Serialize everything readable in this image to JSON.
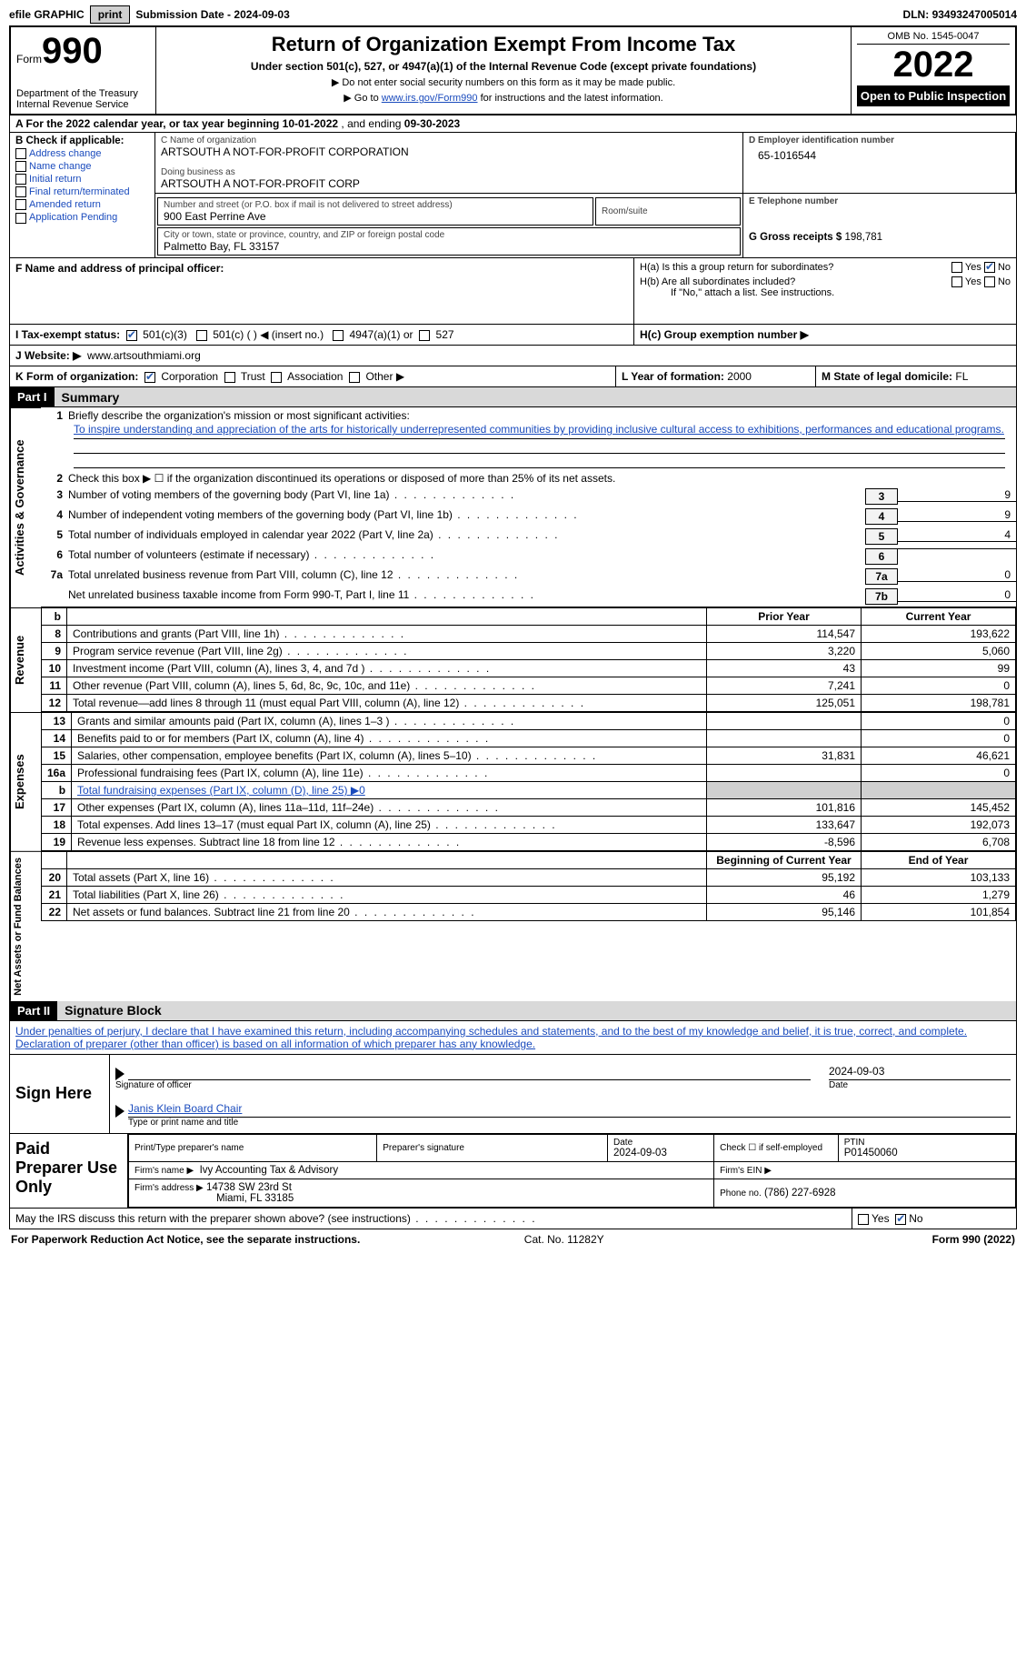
{
  "topbar": {
    "efile": "efile GRAPHIC",
    "print_btn": "print",
    "submission_label": "Submission Date -",
    "submission_date": "2024-09-03",
    "dln_label": "DLN:",
    "dln": "93493247005014"
  },
  "header": {
    "form_label": "Form",
    "form_no": "990",
    "dept": "Department of the Treasury\nInternal Revenue Service",
    "title": "Return of Organization Exempt From Income Tax",
    "subtitle": "Under section 501(c), 527, or 4947(a)(1) of the Internal Revenue Code (except private foundations)",
    "note1": "▶ Do not enter social security numbers on this form as it may be made public.",
    "note2_pre": "▶ Go to ",
    "note2_link": "www.irs.gov/Form990",
    "note2_post": " for instructions and the latest information.",
    "omb": "OMB No. 1545-0047",
    "year": "2022",
    "open": "Open to Public Inspection"
  },
  "lineA": {
    "text_pre": "A For the 2022 calendar year, or tax year beginning ",
    "begin": "10-01-2022",
    "mid": " , and ending ",
    "end": "09-30-2023"
  },
  "colB": {
    "title": "B Check if applicable:",
    "items": [
      "Address change",
      "Name change",
      "Initial return",
      "Final return/terminated",
      "Amended return",
      "Application Pending"
    ]
  },
  "colC": {
    "name_lbl": "C Name of organization",
    "name": "ARTSOUTH A NOT-FOR-PROFIT CORPORATION",
    "dba_lbl": "Doing business as",
    "dba": "ARTSOUTH A NOT-FOR-PROFIT CORP",
    "addr_lbl": "Number and street (or P.O. box if mail is not delivered to street address)",
    "addr": "900 East Perrine Ave",
    "room_lbl": "Room/suite",
    "city_lbl": "City or town, state or province, country, and ZIP or foreign postal code",
    "city": "Palmetto Bay, FL  33157"
  },
  "colD": {
    "ein_lbl": "D Employer identification number",
    "ein": "65-1016544",
    "tel_lbl": "E Telephone number",
    "gross_lbl": "G Gross receipts $",
    "gross": "198,781"
  },
  "rowF": {
    "lbl": "F Name and address of principal officer:"
  },
  "rowH": {
    "ha": "H(a)  Is this a group return for subordinates?",
    "hb": "H(b)  Are all subordinates included?",
    "hb_note": "If \"No,\" attach a list. See instructions.",
    "hc": "H(c)  Group exemption number ▶",
    "yes": "Yes",
    "no": "No"
  },
  "rowI": {
    "lbl": "I   Tax-exempt status:",
    "o1": "501(c)(3)",
    "o2": "501(c) (   ) ◀ (insert no.)",
    "o3": "4947(a)(1) or",
    "o4": "527"
  },
  "rowJ": {
    "lbl": "J   Website: ▶",
    "val": "www.artsouthmiami.org"
  },
  "rowK": {
    "lbl": "K Form of organization:",
    "o1": "Corporation",
    "o2": "Trust",
    "o3": "Association",
    "o4": "Other ▶",
    "l_lbl": "L Year of formation:",
    "l_val": "2000",
    "m_lbl": "M State of legal domicile:",
    "m_val": "FL"
  },
  "part1": {
    "tag": "Part I",
    "title": "Summary"
  },
  "summary": {
    "side1": "Activities & Governance",
    "line1_lbl": "Briefly describe the organization's mission or most significant activities:",
    "line1_txt": "To inspire understanding and appreciation of the arts for historically underrepresented communities by providing inclusive cultural access to exhibitions, performances and educational programs.",
    "line2": "Check this box ▶ ☐ if the organization discontinued its operations or disposed of more than 25% of its net assets.",
    "rows_gov": [
      {
        "n": "3",
        "t": "Number of voting members of the governing body (Part VI, line 1a)",
        "box": "3",
        "v": "9"
      },
      {
        "n": "4",
        "t": "Number of independent voting members of the governing body (Part VI, line 1b)",
        "box": "4",
        "v": "9"
      },
      {
        "n": "5",
        "t": "Total number of individuals employed in calendar year 2022 (Part V, line 2a)",
        "box": "5",
        "v": "4"
      },
      {
        "n": "6",
        "t": "Total number of volunteers (estimate if necessary)",
        "box": "6",
        "v": ""
      },
      {
        "n": "7a",
        "t": "Total unrelated business revenue from Part VIII, column (C), line 12",
        "box": "7a",
        "v": "0"
      },
      {
        "n": "",
        "t": "Net unrelated business taxable income from Form 990-T, Part I, line 11",
        "box": "7b",
        "v": "0"
      }
    ]
  },
  "fin": {
    "col_a": "Prior Year",
    "col_b": "Current Year",
    "side_rev": "Revenue",
    "side_exp": "Expenses",
    "side_net": "Net Assets or Fund Balances",
    "col_boy": "Beginning of Current Year",
    "col_eoy": "End of Year",
    "rev": [
      {
        "n": "8",
        "t": "Contributions and grants (Part VIII, line 1h)",
        "a": "114,547",
        "b": "193,622"
      },
      {
        "n": "9",
        "t": "Program service revenue (Part VIII, line 2g)",
        "a": "3,220",
        "b": "5,060"
      },
      {
        "n": "10",
        "t": "Investment income (Part VIII, column (A), lines 3, 4, and 7d )",
        "a": "43",
        "b": "99"
      },
      {
        "n": "11",
        "t": "Other revenue (Part VIII, column (A), lines 5, 6d, 8c, 9c, 10c, and 11e)",
        "a": "7,241",
        "b": "0"
      },
      {
        "n": "12",
        "t": "Total revenue—add lines 8 through 11 (must equal Part VIII, column (A), line 12)",
        "a": "125,051",
        "b": "198,781"
      }
    ],
    "exp": [
      {
        "n": "13",
        "t": "Grants and similar amounts paid (Part IX, column (A), lines 1–3 )",
        "a": "",
        "b": "0"
      },
      {
        "n": "14",
        "t": "Benefits paid to or for members (Part IX, column (A), line 4)",
        "a": "",
        "b": "0"
      },
      {
        "n": "15",
        "t": "Salaries, other compensation, employee benefits (Part IX, column (A), lines 5–10)",
        "a": "31,831",
        "b": "46,621"
      },
      {
        "n": "16a",
        "t": "Professional fundraising fees (Part IX, column (A), line 11e)",
        "a": "",
        "b": "0"
      },
      {
        "n": "b",
        "t": "Total fundraising expenses (Part IX, column (D), line 25) ▶0",
        "a": "gray",
        "b": "gray"
      },
      {
        "n": "17",
        "t": "Other expenses (Part IX, column (A), lines 11a–11d, 11f–24e)",
        "a": "101,816",
        "b": "145,452"
      },
      {
        "n": "18",
        "t": "Total expenses. Add lines 13–17 (must equal Part IX, column (A), line 25)",
        "a": "133,647",
        "b": "192,073"
      },
      {
        "n": "19",
        "t": "Revenue less expenses. Subtract line 18 from line 12",
        "a": "-8,596",
        "b": "6,708"
      }
    ],
    "net": [
      {
        "n": "20",
        "t": "Total assets (Part X, line 16)",
        "a": "95,192",
        "b": "103,133"
      },
      {
        "n": "21",
        "t": "Total liabilities (Part X, line 26)",
        "a": "46",
        "b": "1,279"
      },
      {
        "n": "22",
        "t": "Net assets or fund balances. Subtract line 21 from line 20",
        "a": "95,146",
        "b": "101,854"
      }
    ]
  },
  "part2": {
    "tag": "Part II",
    "title": "Signature Block"
  },
  "sig": {
    "decl": "Under penalties of perjury, I declare that I have examined this return, including accompanying schedules and statements, and to the best of my knowledge and belief, it is true, correct, and complete. Declaration of preparer (other than officer) is based on all information of which preparer has any knowledge.",
    "sign_here": "Sign Here",
    "sig_officer": "Signature of officer",
    "date": "2024-09-03",
    "date_lbl": "Date",
    "name": "Janis Klein  Board Chair",
    "name_lbl": "Type or print name and title",
    "paid": "Paid Preparer Use Only",
    "p_name_lbl": "Print/Type preparer's name",
    "p_sig_lbl": "Preparer's signature",
    "p_date_lbl": "Date",
    "p_date": "2024-09-03",
    "p_check": "Check ☐ if self-employed",
    "ptin_lbl": "PTIN",
    "ptin": "P01450060",
    "firm_name_lbl": "Firm's name  ▶",
    "firm_name": "Ivy Accounting Tax & Advisory",
    "firm_ein_lbl": "Firm's EIN ▶",
    "firm_addr_lbl": "Firm's address ▶",
    "firm_addr1": "14738 SW 23rd St",
    "firm_addr2": "Miami, FL  33185",
    "phone_lbl": "Phone no.",
    "phone": "(786) 227-6928",
    "discuss": "May the IRS discuss this return with the preparer shown above? (see instructions)"
  },
  "footer": {
    "pra": "For Paperwork Reduction Act Notice, see the separate instructions.",
    "cat": "Cat. No. 11282Y",
    "form": "Form 990 (2022)"
  },
  "colors": {
    "link": "#1a4bbd",
    "gray": "#d0d0d0"
  }
}
